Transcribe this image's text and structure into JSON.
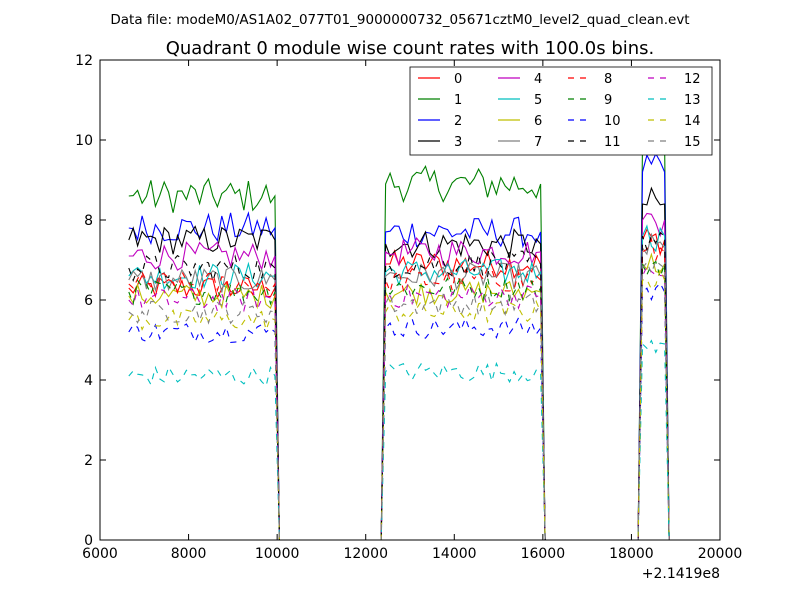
{
  "header": {
    "datafile_text": "Data file: modeM0/AS1A02_077T01_9000000732_05671cztM0_level2_quad_clean.evt"
  },
  "chart_data": {
    "type": "line",
    "title": "Quadrant 0 module wise count rates with 100.0s bins.",
    "xlabel": "",
    "ylabel": "",
    "xlim": [
      6000,
      20000
    ],
    "ylim": [
      0,
      12
    ],
    "x_offset_label": "+2.1419e8",
    "x_ticks": [
      6000,
      8000,
      10000,
      12000,
      14000,
      16000,
      18000,
      20000
    ],
    "x_tick_labels": [
      "6000",
      "8000",
      "10000",
      "12000",
      "14000",
      "16000",
      "18000",
      "20000"
    ],
    "y_ticks": [
      0,
      2,
      4,
      6,
      8,
      10,
      12
    ],
    "y_tick_labels": [
      "0",
      "2",
      "4",
      "6",
      "8",
      "10",
      "12"
    ],
    "grid": false,
    "legend_position": "top-right",
    "legend_columns": 4,
    "segments": [
      {
        "x_start": 6650,
        "x_end": 9950,
        "n": 34
      },
      {
        "x_start": 12450,
        "x_end": 15950,
        "n": 36
      },
      {
        "x_start": 18250,
        "x_end": 18750,
        "n": 6
      }
    ],
    "baseline_drops": [
      10050,
      12350,
      16050,
      18150,
      18850
    ],
    "series": [
      {
        "name": "0",
        "color": "#ff0000",
        "dash": "solid",
        "levels": [
          6.3,
          6.9,
          7.5
        ]
      },
      {
        "name": "1",
        "color": "#008000",
        "dash": "solid",
        "levels": [
          8.6,
          8.9,
          9.9
        ]
      },
      {
        "name": "2",
        "color": "#0000ff",
        "dash": "solid",
        "levels": [
          7.8,
          7.7,
          9.2
        ]
      },
      {
        "name": "3",
        "color": "#000000",
        "dash": "solid",
        "levels": [
          7.5,
          7.4,
          8.4
        ]
      },
      {
        "name": "4",
        "color": "#bf00bf",
        "dash": "solid",
        "levels": [
          7.1,
          7.2,
          8.0
        ]
      },
      {
        "name": "5",
        "color": "#00bfbf",
        "dash": "solid",
        "levels": [
          6.6,
          6.7,
          7.6
        ]
      },
      {
        "name": "6",
        "color": "#bfbf00",
        "dash": "solid",
        "levels": [
          6.1,
          6.2,
          6.9
        ]
      },
      {
        "name": "7",
        "color": "#808080",
        "dash": "solid",
        "levels": [
          6.5,
          6.6,
          7.3
        ]
      },
      {
        "name": "8",
        "color": "#ff0000",
        "dash": "dashed",
        "levels": [
          6.4,
          6.5,
          7.2
        ]
      },
      {
        "name": "9",
        "color": "#008000",
        "dash": "dashed",
        "levels": [
          6.2,
          6.3,
          6.9
        ]
      },
      {
        "name": "10",
        "color": "#0000ff",
        "dash": "dashed",
        "levels": [
          5.2,
          5.3,
          6.2
        ]
      },
      {
        "name": "11",
        "color": "#000000",
        "dash": "dashed",
        "levels": [
          6.8,
          6.9,
          7.6
        ]
      },
      {
        "name": "12",
        "color": "#bf00bf",
        "dash": "dashed",
        "levels": [
          6.0,
          6.1,
          6.6
        ]
      },
      {
        "name": "13",
        "color": "#00bfbf",
        "dash": "dashed",
        "levels": [
          4.1,
          4.2,
          4.9
        ]
      },
      {
        "name": "14",
        "color": "#bfbf00",
        "dash": "dashed",
        "levels": [
          5.5,
          5.7,
          6.5
        ]
      },
      {
        "name": "15",
        "color": "#808080",
        "dash": "dashed",
        "levels": [
          5.7,
          5.9,
          6.8
        ]
      }
    ]
  }
}
